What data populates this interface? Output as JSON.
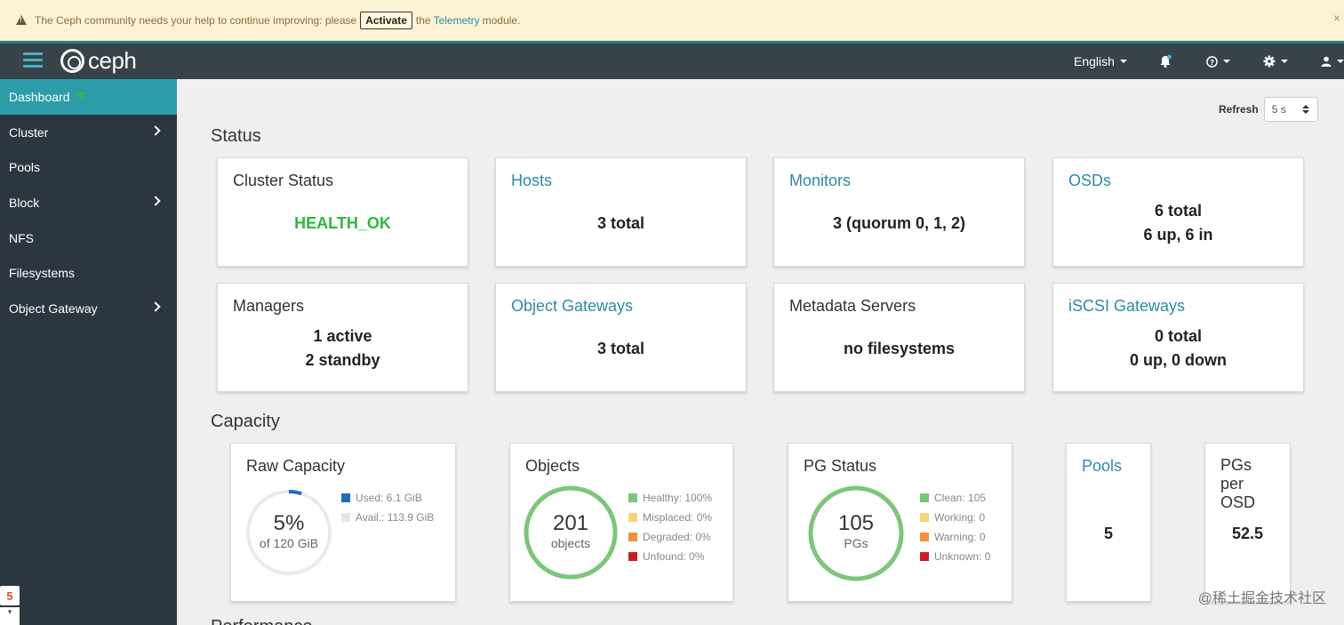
{
  "banner": {
    "text_before": "The Ceph community needs your help to continue improving: please",
    "activate_label": "Activate",
    "text_mid": "the",
    "telemetry_link": "Telemetry",
    "text_after": "module.",
    "close": "×"
  },
  "navbar": {
    "logo_text": "ceph",
    "language": "English",
    "icons": [
      "bell-icon",
      "help-icon",
      "gear-icon",
      "user-icon"
    ]
  },
  "sidebar": {
    "items": [
      {
        "label": "Dashboard",
        "active": true
      },
      {
        "label": "Cluster",
        "has_submenu": true
      },
      {
        "label": "Pools"
      },
      {
        "label": "Block",
        "has_submenu": true
      },
      {
        "label": "NFS"
      },
      {
        "label": "Filesystems"
      },
      {
        "label": "Object Gateway",
        "has_submenu": true
      }
    ]
  },
  "refresh": {
    "label": "Refresh",
    "value": "5 s"
  },
  "status": {
    "title": "Status",
    "cards": {
      "cluster_status": {
        "title": "Cluster Status",
        "value": "HEALTH_OK"
      },
      "hosts": {
        "title": "Hosts",
        "value": "3 total"
      },
      "monitors": {
        "title": "Monitors",
        "value": "3 (quorum 0, 1, 2)"
      },
      "osds": {
        "title": "OSDs",
        "line1": "6 total",
        "line2": "6 up, 6 in"
      },
      "managers": {
        "title": "Managers",
        "line1": "1 active",
        "line2": "2 standby"
      },
      "object_gateways": {
        "title": "Object Gateways",
        "value": "3 total"
      },
      "metadata_servers": {
        "title": "Metadata Servers",
        "value": "no filesystems"
      },
      "iscsi_gateways": {
        "title": "iSCSI Gateways",
        "line1": "0 total",
        "line2": "0 up, 0 down"
      }
    }
  },
  "capacity": {
    "title": "Capacity",
    "raw_capacity": {
      "title": "Raw Capacity",
      "percent_label": "5%",
      "percent": 0.05,
      "sub": "of 120 GiB",
      "legend": [
        {
          "label": "Used: 6.1 GiB",
          "color": "#1f6bc4"
        },
        {
          "label": "Avail.: 113.9 GiB",
          "color": "#e6e6e6"
        }
      ]
    },
    "objects": {
      "title": "Objects",
      "value": "201",
      "sub": "objects",
      "legend": [
        {
          "label": "Healthy: 100%",
          "color": "#7dc57a"
        },
        {
          "label": "Misplaced: 0%",
          "color": "#f6d37d"
        },
        {
          "label": "Degraded: 0%",
          "color": "#f0903c"
        },
        {
          "label": "Unfound: 0%",
          "color": "#cc1e1e"
        }
      ]
    },
    "pg_status": {
      "title": "PG Status",
      "value": "105",
      "sub": "PGs",
      "legend": [
        {
          "label": "Clean: 105",
          "color": "#7dc57a"
        },
        {
          "label": "Working: 0",
          "color": "#f6d37d"
        },
        {
          "label": "Warning: 0",
          "color": "#f0903c"
        },
        {
          "label": "Unknown: 0",
          "color": "#cc1e1e"
        }
      ]
    },
    "pools": {
      "title": "Pools",
      "value": "5"
    },
    "pgs_per_osd": {
      "title_l1": "PGs",
      "title_l2": "per",
      "title_l3": "OSD",
      "value": "52.5"
    }
  },
  "performance": {
    "title": "Performance"
  },
  "watermark": "@稀土掘金技术社区"
}
